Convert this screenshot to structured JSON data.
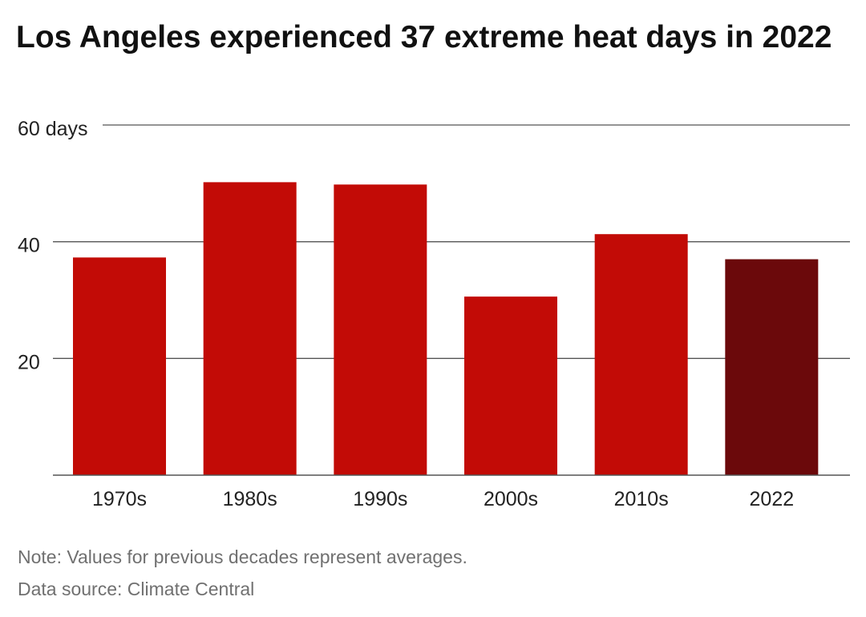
{
  "title": "Los Angeles experienced 37 extreme heat days in 2022",
  "notes": {
    "note": "Note: Values for previous decades represent averages.",
    "source": "Data source: Climate Central"
  },
  "colors": {
    "bar": "#c20b06",
    "highlight": "#6b090b",
    "grid": "#555555",
    "axis_text": "#222222"
  },
  "chart_data": {
    "type": "bar",
    "categories": [
      "1970s",
      "1980s",
      "1990s",
      "2000s",
      "2010s",
      "2022"
    ],
    "values": [
      37.3,
      50.2,
      49.8,
      30.6,
      41.3,
      37
    ],
    "highlight_index": 5,
    "ylim": [
      0,
      60
    ],
    "yticks": [
      {
        "value": 20,
        "label": "20"
      },
      {
        "value": 40,
        "label": "40"
      },
      {
        "value": 60,
        "label": "60 days"
      }
    ],
    "xlabel": "",
    "ylabel": "",
    "grid": true
  }
}
